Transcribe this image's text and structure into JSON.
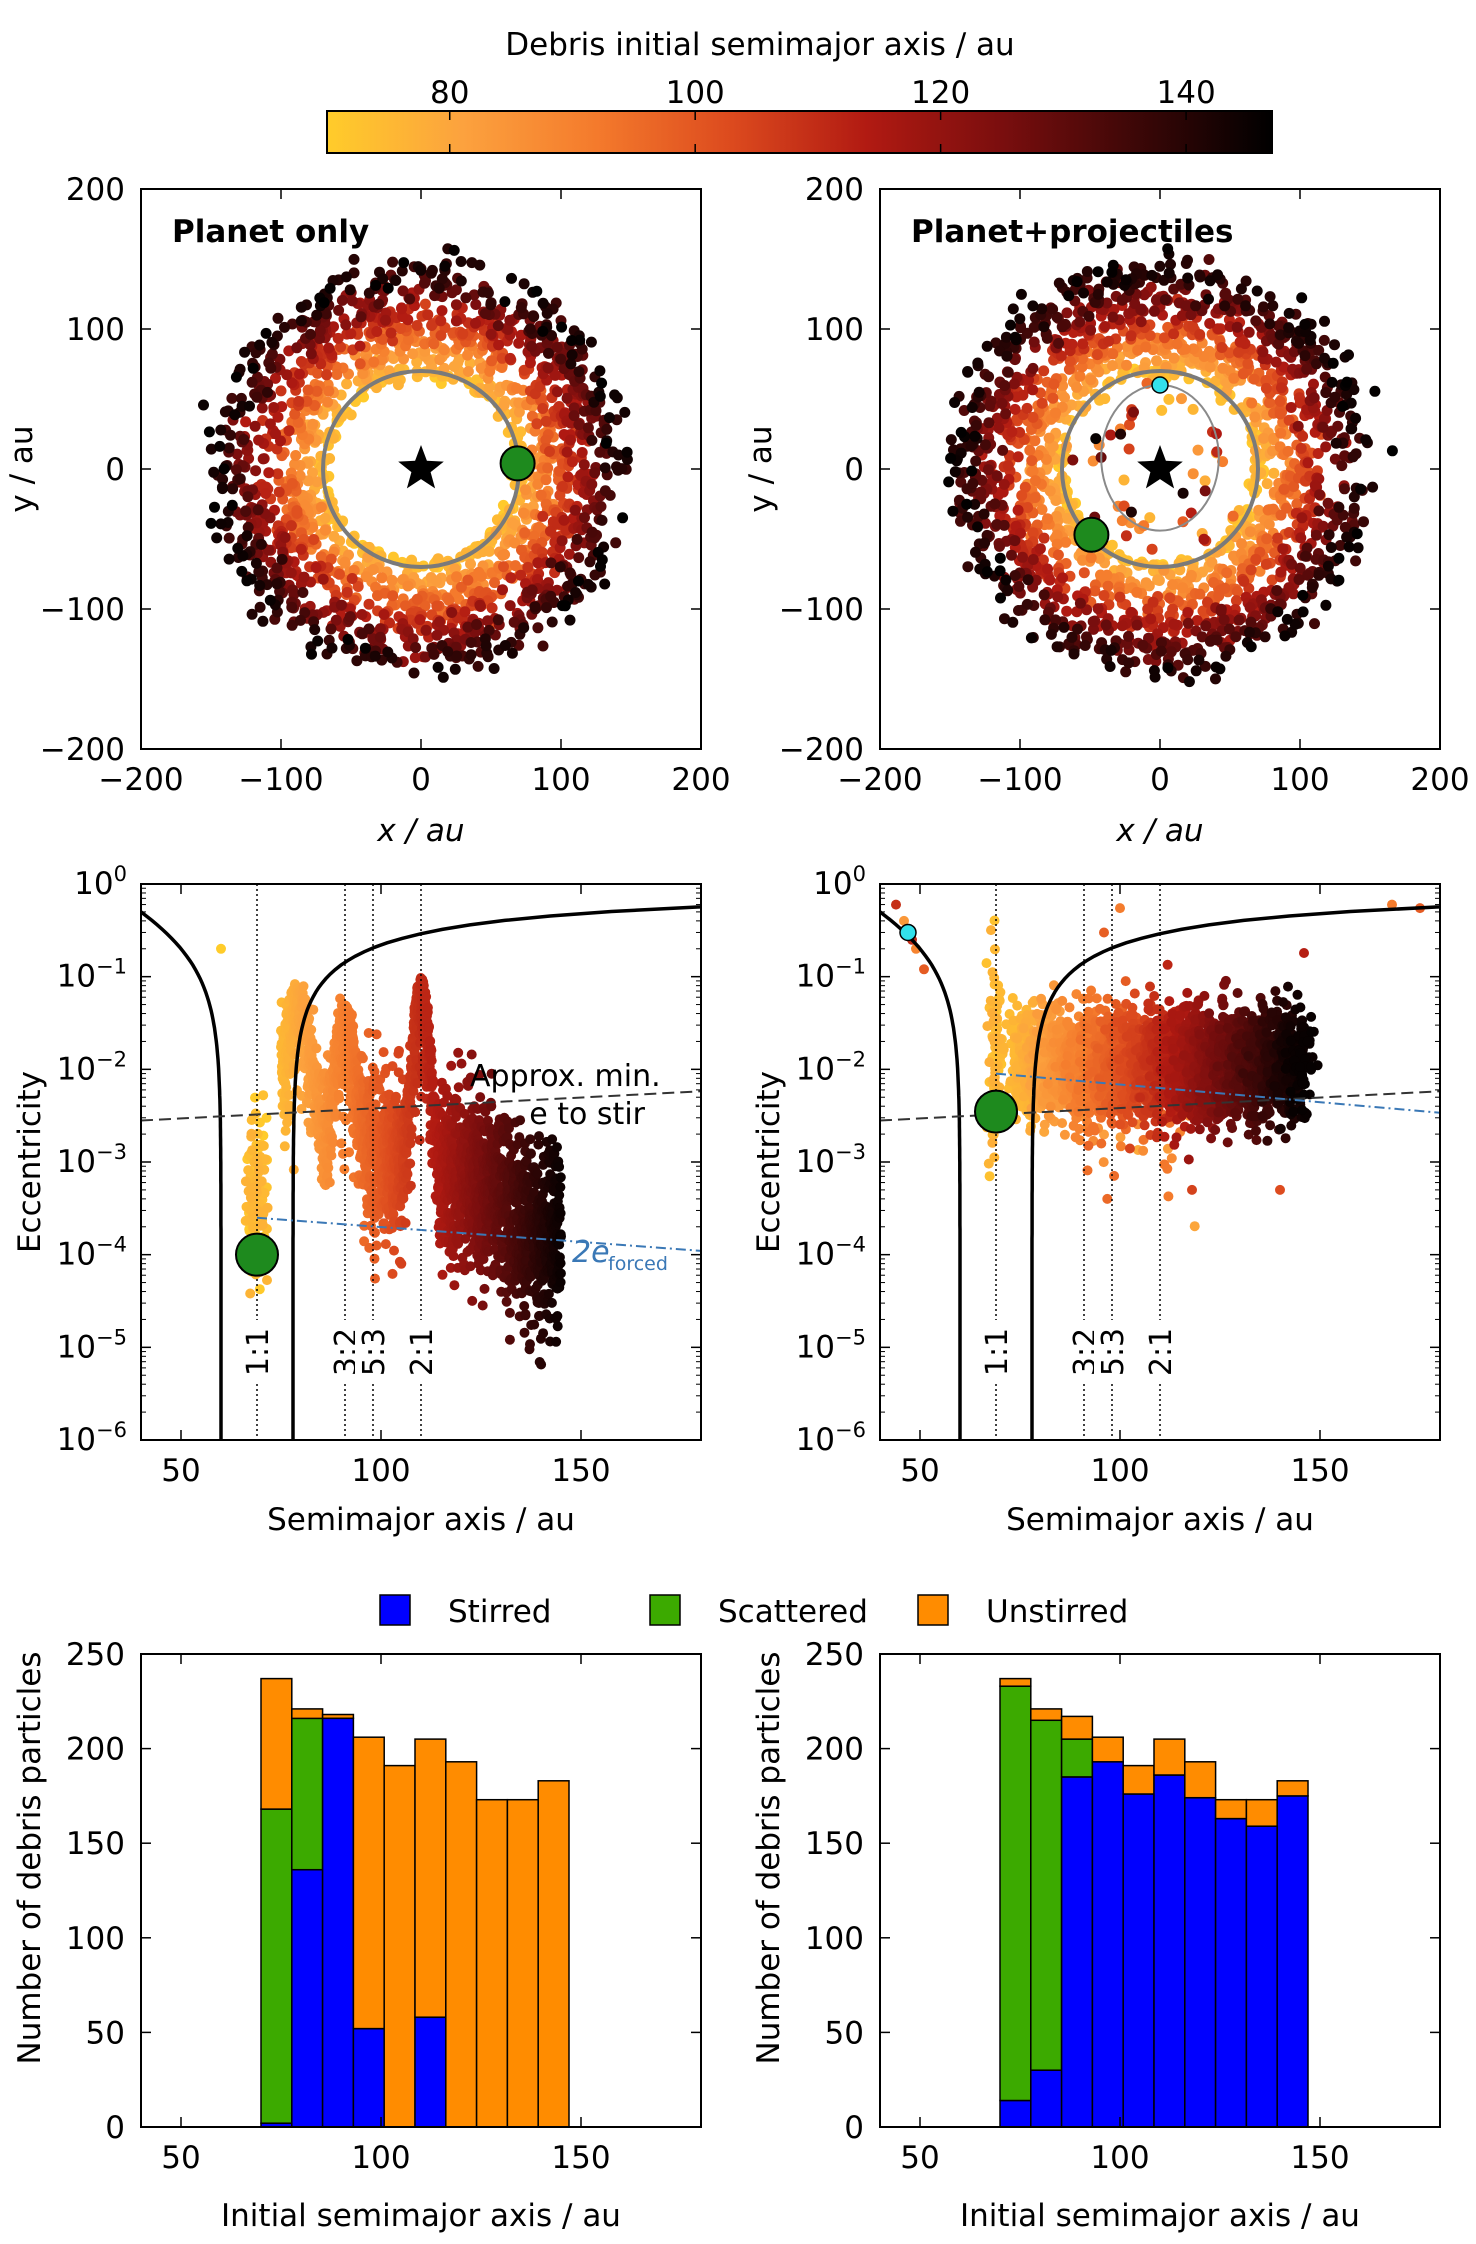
{
  "colorbar": {
    "label": "Debris initial semimajor axis / au",
    "range": [
      70,
      147
    ],
    "ticks": [
      80,
      100,
      120,
      140
    ],
    "colors": [
      "#ffcc2a",
      "#fca23e",
      "#f47a2c",
      "#dc4a1e",
      "#b11a12",
      "#7a0e0e",
      "#3c0707",
      "#000000"
    ]
  },
  "panels": {
    "top_left_title": "Planet only",
    "top_right_title": "Planet+projectiles",
    "x_label": "x / au",
    "y_label": "y / au"
  },
  "annotations": {
    "approx_min_line1": "Approx. min.",
    "approx_min_line2": "e to stir",
    "forced_label": "2e",
    "forced_sub": "forced",
    "resonances": [
      "1:1",
      "3:2",
      "5:3",
      "2:1"
    ]
  },
  "legend": {
    "stirred": "Stirred",
    "scattered": "Scattered",
    "unstirred": "Unstirred"
  },
  "chart_data": [
    {
      "type": "scatter",
      "title": "Planet only",
      "xlabel": "x / au",
      "ylabel": "y / au",
      "xlim": [
        -200,
        200
      ],
      "ylim": [
        -200,
        200
      ],
      "xticks": [
        -200,
        -100,
        0,
        100,
        200
      ],
      "yticks": [
        -200,
        -100,
        0,
        100,
        200
      ],
      "planet": {
        "x": 69,
        "y": 4,
        "color": "#1e8a1e"
      },
      "star": {
        "x": 0,
        "y": 0
      },
      "planet_orbit_radius": 70
    },
    {
      "type": "scatter",
      "title": "Planet+projectiles",
      "xlabel": "x / au",
      "ylabel": "y / au",
      "xlim": [
        -200,
        200
      ],
      "ylim": [
        -200,
        200
      ],
      "xticks": [
        -200,
        -100,
        0,
        100,
        200
      ],
      "yticks": [
        -200,
        -100,
        0,
        100,
        200
      ],
      "planet": {
        "x": -49,
        "y": -47,
        "color": "#1e8a1e"
      },
      "projectile": {
        "x": 0,
        "y": 60,
        "color": "#33e0ea"
      },
      "star": {
        "x": 0,
        "y": 0
      },
      "planet_orbit_radius": 70,
      "projectile_orbit": {
        "cx": 0,
        "cy": 8,
        "rx": 42,
        "ry": 52
      },
      "outlier": {
        "x": 166,
        "y": 13
      }
    },
    {
      "type": "scatter",
      "xlabel": "Semimajor axis / au",
      "ylabel": "Eccentricity",
      "xlim": [
        40,
        180
      ],
      "ylog_range": [
        -6,
        0
      ],
      "xticks": [
        50,
        100,
        150
      ],
      "resonances_au": [
        69,
        91,
        98,
        110
      ],
      "planet": {
        "a": 69,
        "e": 0.0001
      },
      "approx_min_e": {
        "a_start": 40,
        "e_start": 0.0028,
        "a_end": 180,
        "e_end": 0.0058
      },
      "two_e_forced": {
        "a_start": 69,
        "e_start": 0.00025,
        "a_end": 180,
        "e_end": 0.00011
      }
    },
    {
      "type": "scatter",
      "xlabel": "Semimajor axis / au",
      "ylabel": "Eccentricity",
      "xlim": [
        40,
        180
      ],
      "ylog_range": [
        -6,
        0
      ],
      "xticks": [
        50,
        100,
        150
      ],
      "resonances_au": [
        69,
        91,
        98,
        110
      ],
      "planet": {
        "a": 69,
        "e": 0.0035
      },
      "projectile": {
        "a": 47,
        "e": 0.3
      },
      "approx_min_e": {
        "a_start": 40,
        "e_start": 0.0028,
        "a_end": 180,
        "e_end": 0.0058
      },
      "two_e_forced": {
        "a_start": 69,
        "e_start": 0.009,
        "a_end": 180,
        "e_end": 0.0034
      }
    },
    {
      "type": "bar",
      "xlabel": "Initial semimajor axis / au",
      "ylabel": "Number of debris particles",
      "xlim": [
        40,
        180
      ],
      "ylim": [
        0,
        250
      ],
      "xticks": [
        50,
        100,
        150
      ],
      "yticks": [
        0,
        50,
        100,
        150,
        200,
        250
      ],
      "bin_edges": [
        70,
        77.7,
        85.4,
        93.1,
        100.8,
        108.5,
        116.2,
        123.9,
        131.6,
        139.3,
        147
      ],
      "series": [
        {
          "name": "Stirred",
          "color": "#0000ff",
          "values": [
            2,
            136,
            216,
            52,
            0,
            58,
            0,
            0,
            0,
            0
          ]
        },
        {
          "name": "Scattered",
          "color": "#3caa00",
          "values": [
            166,
            80,
            0,
            0,
            0,
            0,
            0,
            0,
            0,
            0
          ]
        },
        {
          "name": "Unstirred",
          "color": "#ff8c00",
          "values": [
            69,
            5,
            2,
            154,
            191,
            147,
            193,
            173,
            173,
            183
          ]
        }
      ]
    },
    {
      "type": "bar",
      "xlabel": "Initial semimajor axis / au",
      "ylabel": "Number of debris particles",
      "xlim": [
        40,
        180
      ],
      "ylim": [
        0,
        250
      ],
      "xticks": [
        50,
        100,
        150
      ],
      "yticks": [
        0,
        50,
        100,
        150,
        200,
        250
      ],
      "bin_edges": [
        70,
        77.7,
        85.4,
        93.1,
        100.8,
        108.5,
        116.2,
        123.9,
        131.6,
        139.3,
        147
      ],
      "series": [
        {
          "name": "Stirred",
          "color": "#0000ff",
          "values": [
            14,
            30,
            185,
            193,
            176,
            186,
            174,
            163,
            159,
            175
          ]
        },
        {
          "name": "Scattered",
          "color": "#3caa00",
          "values": [
            219,
            185,
            20,
            0,
            0,
            0,
            0,
            0,
            0,
            0
          ]
        },
        {
          "name": "Unstirred",
          "color": "#ff8c00",
          "values": [
            4,
            6,
            12,
            13,
            15,
            19,
            19,
            10,
            14,
            8
          ]
        }
      ]
    }
  ]
}
